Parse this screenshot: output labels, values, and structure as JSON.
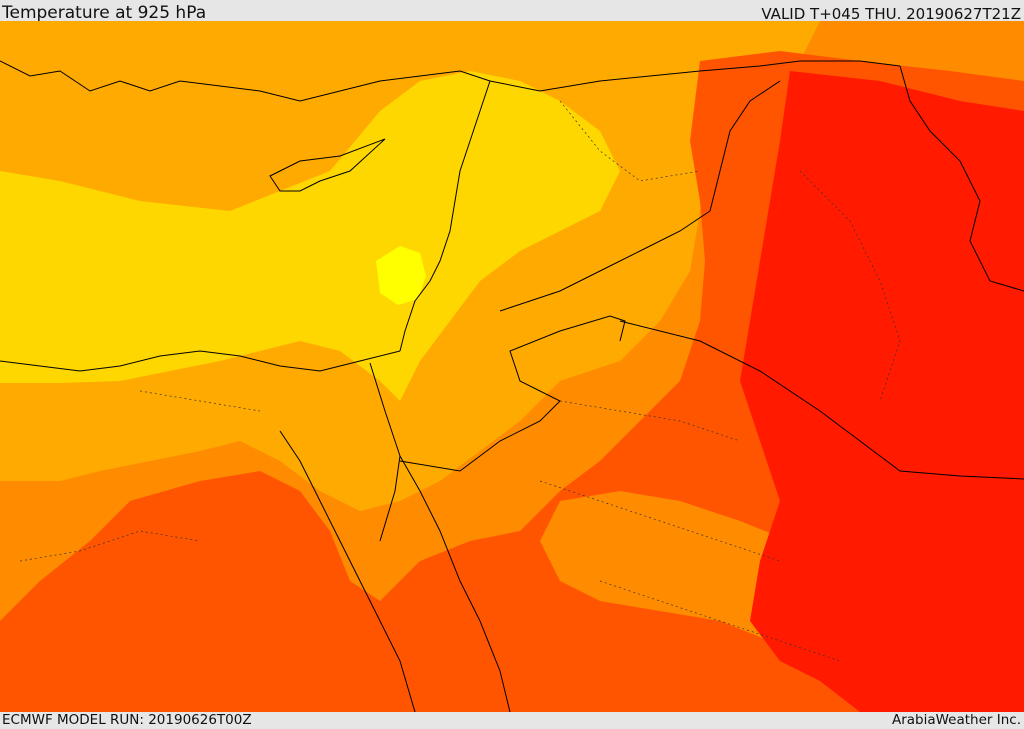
{
  "header": {
    "title": "Temperature at 925 hPa",
    "valid_time": "VALID T+045 THU. 20190627T21Z"
  },
  "footer": {
    "model_run": "ECMWF MODEL RUN: 20190626T00Z",
    "credit": "ArabiaWeather Inc."
  },
  "map": {
    "variable": "temperature",
    "level": "925 hPa",
    "palette": {
      "coolest": "#ffff00",
      "cool": "#ffd700",
      "mild": "#ffaa00",
      "warm": "#ff8c00",
      "hot": "#ff5500",
      "hottest": "#ff1a00"
    },
    "border_color": "#000000"
  }
}
